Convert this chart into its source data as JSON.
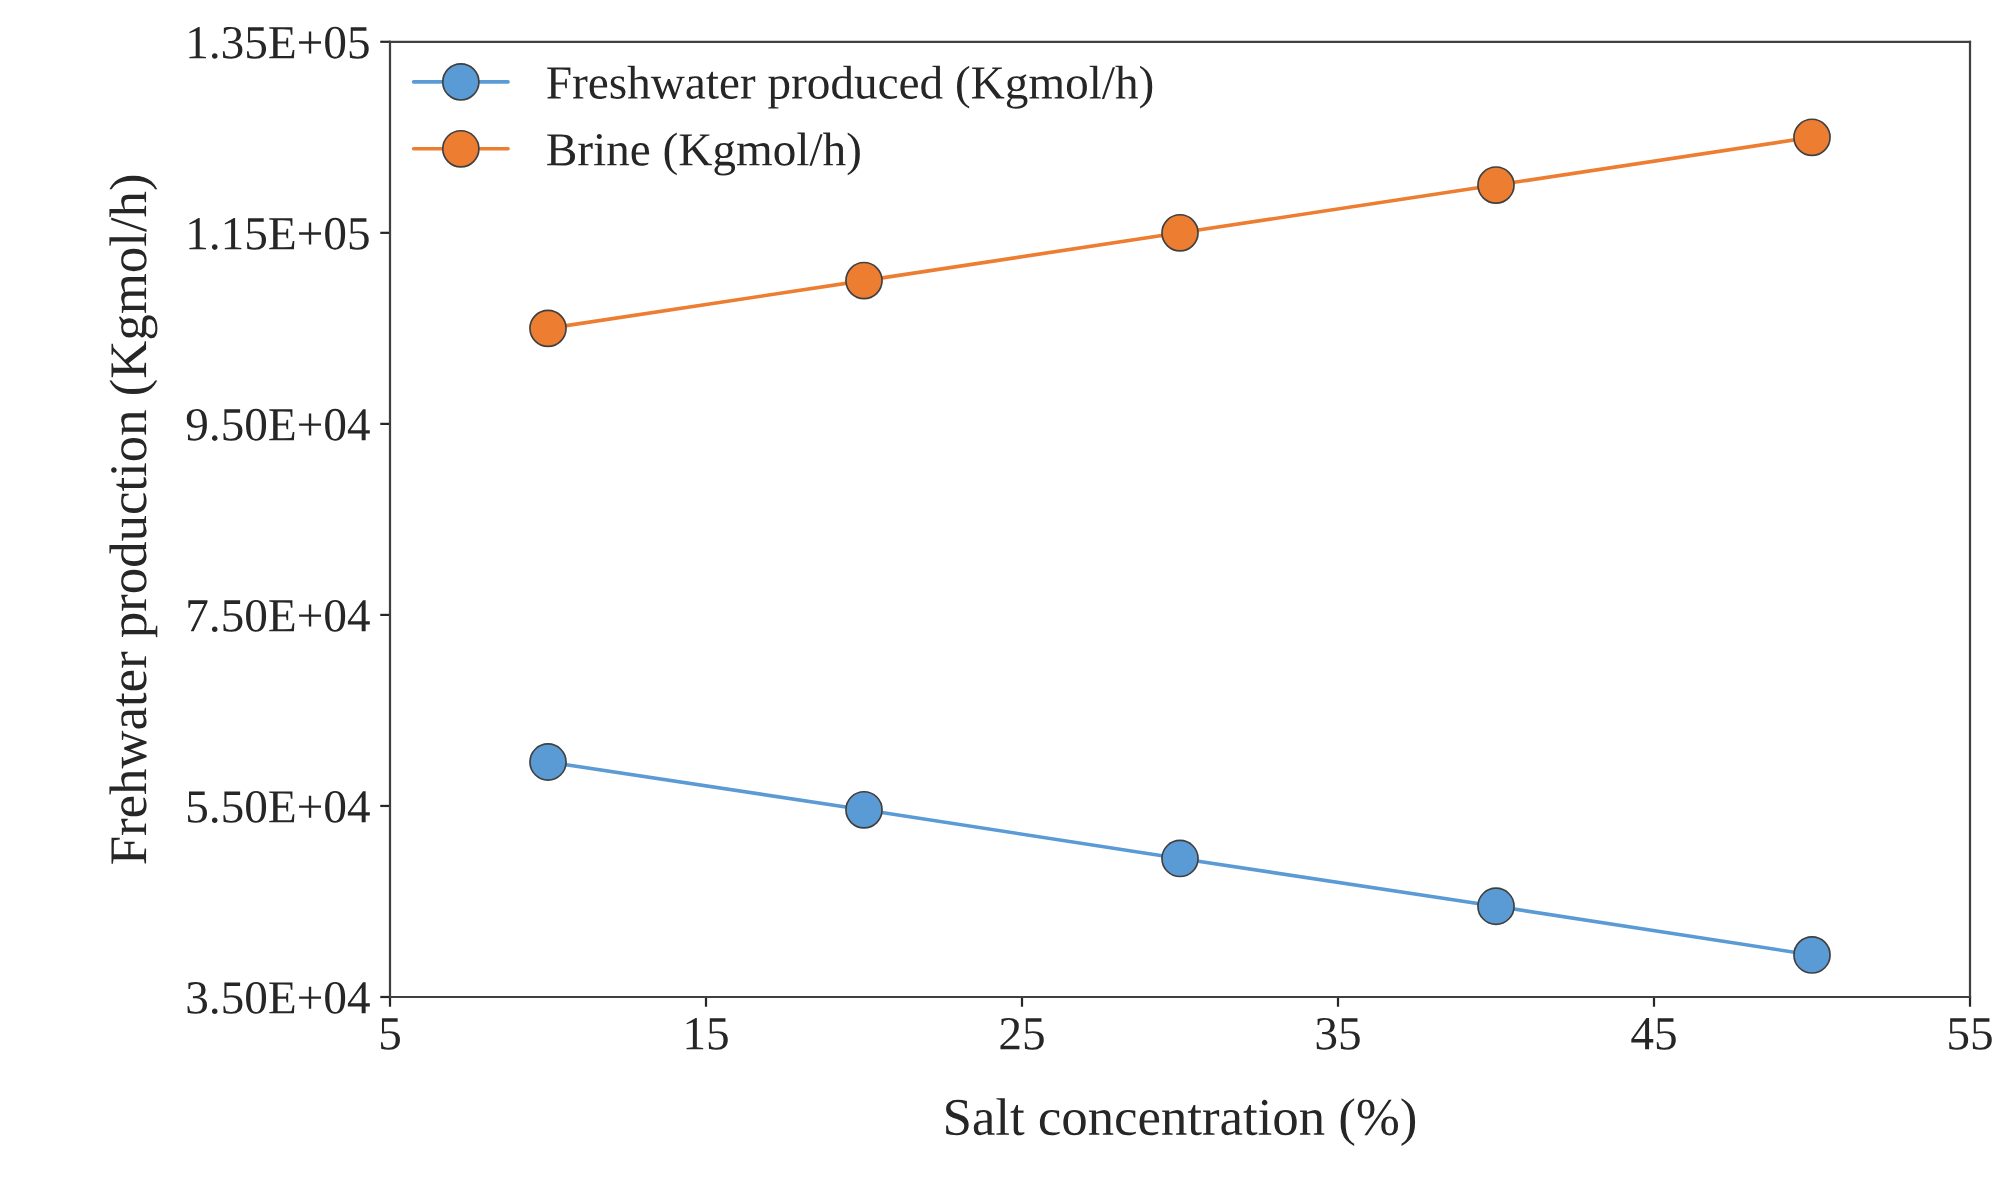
{
  "chart_data": {
    "type": "line",
    "xlabel": "Salt concentration (%)",
    "ylabel": "Frehwater production (Kgmol/h)",
    "x": [
      10,
      20,
      30,
      40,
      50
    ],
    "series": [
      {
        "name": "Freshwater produced (Kgmol/h)",
        "color": "#5b9bd5",
        "values": [
          59600,
          54600,
          49500,
          44500,
          39400
        ]
      },
      {
        "name": "Brine (Kgmol/h)",
        "color": "#ed7d31",
        "values": [
          105000,
          110000,
          115000,
          120000,
          125000
        ]
      }
    ],
    "xlim": [
      5,
      55
    ],
    "xticks": [
      5,
      15,
      25,
      35,
      45,
      55
    ],
    "ylim": [
      35000,
      135000
    ],
    "yticks": [
      {
        "value": 35000,
        "label": "3.50E+04"
      },
      {
        "value": 55000,
        "label": "5.50E+04"
      },
      {
        "value": 75000,
        "label": "7.50E+04"
      },
      {
        "value": 95000,
        "label": "9.50E+04"
      },
      {
        "value": 115000,
        "label": "1.15E+05"
      },
      {
        "value": 135000,
        "label": "1.35E+05"
      }
    ],
    "grid": false,
    "legend": "top left",
    "marker": "circle",
    "line_style": "solid"
  }
}
